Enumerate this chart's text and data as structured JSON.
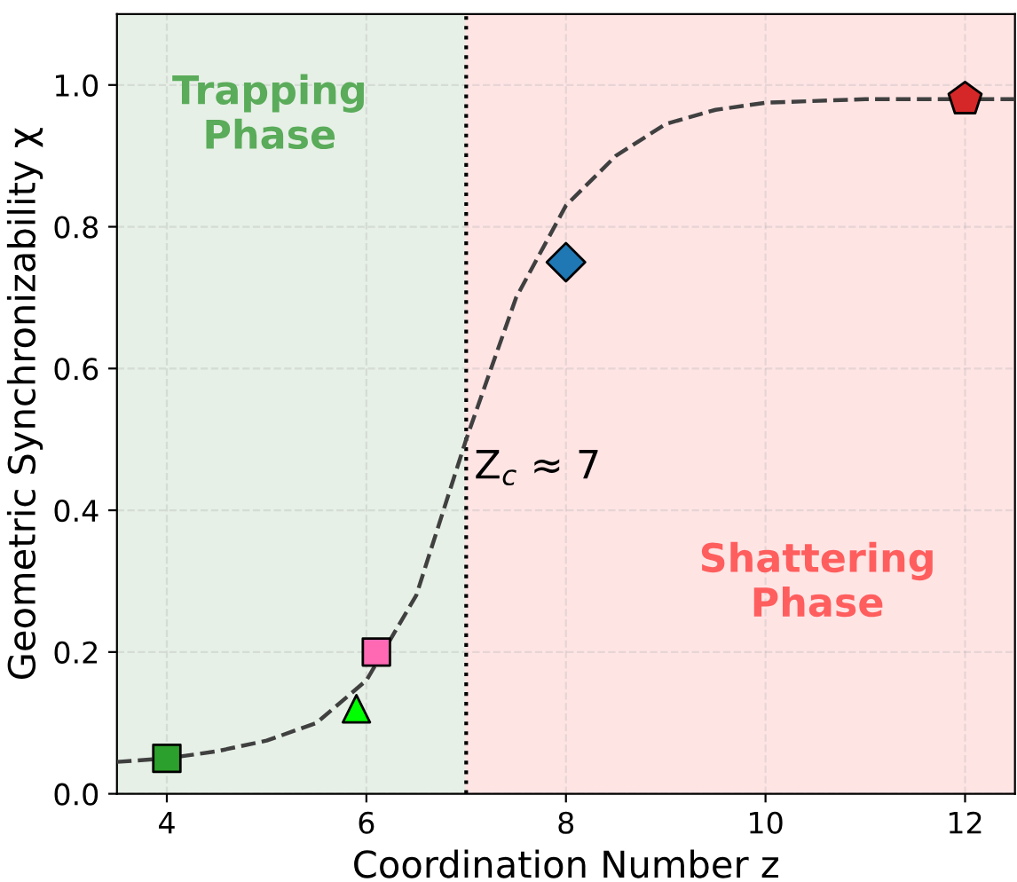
{
  "chart_data": {
    "type": "scatter",
    "xlabel": "Coordination Number z",
    "ylabel": "Geometric Synchronizability χ",
    "xlim": [
      3.5,
      12.5
    ],
    "xticks": [
      4,
      6,
      8,
      10,
      12
    ],
    "ylim": [
      0,
      1.1
    ],
    "yticks": [
      {
        "value": 0,
        "label": "0.0"
      },
      {
        "value": 0.2,
        "label": "0.2"
      },
      {
        "value": 0.4,
        "label": "0.4"
      },
      {
        "value": 0.6,
        "label": "0.6"
      },
      {
        "value": 0.8,
        "label": "0.8"
      },
      {
        "value": 1.0,
        "label": "1.0"
      }
    ],
    "grid": true,
    "bands": [
      {
        "axis": "x",
        "from": 3.5,
        "to": 7,
        "label": "Trapping\nPhase",
        "color": "#e6f0e6"
      },
      {
        "axis": "x",
        "from": 7,
        "to": 12.5,
        "label": "Shattering\nPhase",
        "color": "#ffe4e4"
      }
    ],
    "ref_lines": [
      {
        "axis": "x",
        "value": 7,
        "label": "Z$_{c}$ ≈ 7",
        "color": "#000000",
        "line_style": "dotted"
      }
    ],
    "series": [
      {
        "type": "line",
        "color": "#404040",
        "line_style": "dashed",
        "marker": "none",
        "x": [
          3.5,
          4,
          4.5,
          5,
          5.5,
          6,
          6.5,
          7,
          7.5,
          8,
          8.5,
          9,
          9.5,
          10,
          11,
          12.5
        ],
        "values": [
          0.045,
          0.05,
          0.06,
          0.075,
          0.1,
          0.16,
          0.28,
          0.5,
          0.7,
          0.83,
          0.9,
          0.945,
          0.965,
          0.975,
          0.98,
          0.98
        ]
      },
      {
        "color": "#2ca02c",
        "marker": "square",
        "x": [
          4
        ],
        "values": [
          0.05
        ]
      },
      {
        "color": "#00ff00",
        "marker": "triangle",
        "x": [
          5.9
        ],
        "values": [
          0.12
        ]
      },
      {
        "color": "#ff69b4",
        "marker": "square",
        "x": [
          6.1
        ],
        "values": [
          0.2
        ]
      },
      {
        "color": "#1f77b4",
        "marker": "diamond",
        "x": [
          8
        ],
        "values": [
          0.75
        ]
      },
      {
        "color": "#d62728",
        "x": [
          12
        ],
        "values": [
          0.98
        ]
      }
    ]
  }
}
